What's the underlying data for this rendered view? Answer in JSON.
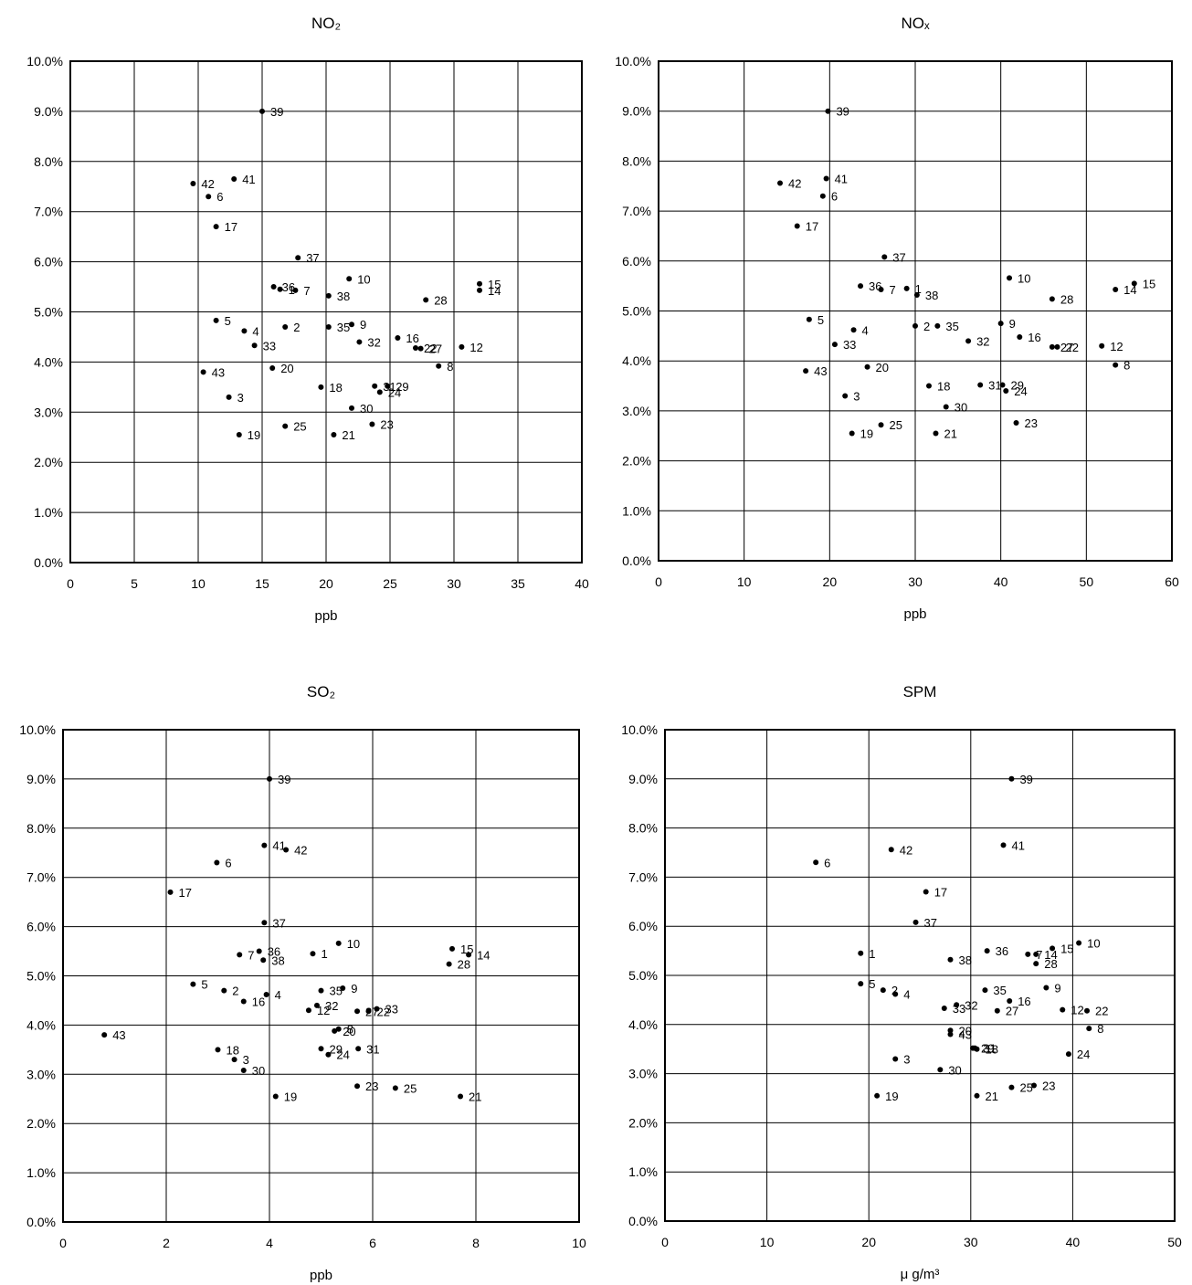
{
  "chart_data": [
    {
      "type": "scatter",
      "title": "NO₂",
      "xlabel": "ppb",
      "ylabel": "",
      "xlim": [
        0,
        40
      ],
      "ylim": [
        0,
        0.1
      ],
      "xticks": [
        "0",
        "5",
        "10",
        "15",
        "20",
        "25",
        "30",
        "35",
        "40"
      ],
      "yticks": [
        "0.0%",
        "1.0%",
        "2.0%",
        "3.0%",
        "4.0%",
        "5.0%",
        "6.0%",
        "7.0%",
        "8.0%",
        "9.0%",
        "10.0%"
      ],
      "grid": true,
      "points": [
        {
          "label": "1",
          "x": 16.4,
          "y": 0.0545
        },
        {
          "label": "2",
          "x": 16.8,
          "y": 0.047
        },
        {
          "label": "3",
          "x": 12.4,
          "y": 0.033
        },
        {
          "label": "4",
          "x": 13.6,
          "y": 0.0462
        },
        {
          "label": "5",
          "x": 11.4,
          "y": 0.0483
        },
        {
          "label": "6",
          "x": 10.8,
          "y": 0.073
        },
        {
          "label": "7",
          "x": 17.6,
          "y": 0.0543
        },
        {
          "label": "8",
          "x": 28.8,
          "y": 0.0392
        },
        {
          "label": "9",
          "x": 22.0,
          "y": 0.0475
        },
        {
          "label": "10",
          "x": 21.8,
          "y": 0.0566
        },
        {
          "label": "12",
          "x": 30.6,
          "y": 0.043
        },
        {
          "label": "14",
          "x": 32.0,
          "y": 0.0543
        },
        {
          "label": "15",
          "x": 32.0,
          "y": 0.0556
        },
        {
          "label": "16",
          "x": 25.6,
          "y": 0.0448
        },
        {
          "label": "17",
          "x": 11.4,
          "y": 0.067
        },
        {
          "label": "18",
          "x": 19.6,
          "y": 0.035
        },
        {
          "label": "19",
          "x": 13.2,
          "y": 0.0255
        },
        {
          "label": "20",
          "x": 15.8,
          "y": 0.0388
        },
        {
          "label": "21",
          "x": 20.6,
          "y": 0.0255
        },
        {
          "label": "22",
          "x": 27.0,
          "y": 0.0428
        },
        {
          "label": "23",
          "x": 23.6,
          "y": 0.0276
        },
        {
          "label": "24",
          "x": 24.2,
          "y": 0.034
        },
        {
          "label": "25",
          "x": 16.8,
          "y": 0.0272
        },
        {
          "label": "27",
          "x": 27.4,
          "y": 0.0427
        },
        {
          "label": "28",
          "x": 27.8,
          "y": 0.0524
        },
        {
          "label": "29",
          "x": 24.8,
          "y": 0.0352
        },
        {
          "label": "30",
          "x": 22.0,
          "y": 0.0308
        },
        {
          "label": "31",
          "x": 23.8,
          "y": 0.0352
        },
        {
          "label": "32",
          "x": 22.6,
          "y": 0.044
        },
        {
          "label": "33",
          "x": 14.4,
          "y": 0.0433
        },
        {
          "label": "35",
          "x": 20.2,
          "y": 0.047
        },
        {
          "label": "36",
          "x": 15.9,
          "y": 0.055
        },
        {
          "label": "37",
          "x": 17.8,
          "y": 0.0608
        },
        {
          "label": "38",
          "x": 20.2,
          "y": 0.0532
        },
        {
          "label": "39",
          "x": 15.0,
          "y": 0.09
        },
        {
          "label": "41",
          "x": 12.8,
          "y": 0.0765
        },
        {
          "label": "42",
          "x": 9.6,
          "y": 0.0756
        },
        {
          "label": "43",
          "x": 10.4,
          "y": 0.038
        }
      ]
    },
    {
      "type": "scatter",
      "title": "NOₓ",
      "xlabel": "ppb",
      "ylabel": "",
      "xlim": [
        0,
        60
      ],
      "ylim": [
        0,
        0.1
      ],
      "xticks": [
        "0",
        "10",
        "20",
        "30",
        "40",
        "50",
        "60"
      ],
      "yticks": [
        "0.0%",
        "1.0%",
        "2.0%",
        "3.0%",
        "4.0%",
        "5.0%",
        "6.0%",
        "7.0%",
        "8.0%",
        "9.0%",
        "10.0%"
      ],
      "grid": true,
      "points": [
        {
          "label": "1",
          "x": 29.0,
          "y": 0.0545
        },
        {
          "label": "2",
          "x": 30.0,
          "y": 0.047
        },
        {
          "label": "3",
          "x": 21.8,
          "y": 0.033
        },
        {
          "label": "4",
          "x": 22.8,
          "y": 0.0462
        },
        {
          "label": "5",
          "x": 17.6,
          "y": 0.0483
        },
        {
          "label": "6",
          "x": 19.2,
          "y": 0.073
        },
        {
          "label": "7",
          "x": 26.0,
          "y": 0.0543
        },
        {
          "label": "8",
          "x": 53.4,
          "y": 0.0392
        },
        {
          "label": "9",
          "x": 40.0,
          "y": 0.0475
        },
        {
          "label": "10",
          "x": 41.0,
          "y": 0.0566
        },
        {
          "label": "12",
          "x": 51.8,
          "y": 0.043
        },
        {
          "label": "14",
          "x": 53.4,
          "y": 0.0543
        },
        {
          "label": "15",
          "x": 55.6,
          "y": 0.0555
        },
        {
          "label": "16",
          "x": 42.2,
          "y": 0.0448
        },
        {
          "label": "17",
          "x": 16.2,
          "y": 0.067
        },
        {
          "label": "18",
          "x": 31.6,
          "y": 0.035
        },
        {
          "label": "19",
          "x": 22.6,
          "y": 0.0255
        },
        {
          "label": "20",
          "x": 24.4,
          "y": 0.0388
        },
        {
          "label": "21",
          "x": 32.4,
          "y": 0.0255
        },
        {
          "label": "22",
          "x": 46.6,
          "y": 0.0428
        },
        {
          "label": "23",
          "x": 41.8,
          "y": 0.0276
        },
        {
          "label": "24",
          "x": 40.6,
          "y": 0.034
        },
        {
          "label": "25",
          "x": 26.0,
          "y": 0.0272
        },
        {
          "label": "27",
          "x": 46.0,
          "y": 0.0428
        },
        {
          "label": "28",
          "x": 46.0,
          "y": 0.0524
        },
        {
          "label": "29",
          "x": 40.2,
          "y": 0.0352
        },
        {
          "label": "30",
          "x": 33.6,
          "y": 0.0308
        },
        {
          "label": "31",
          "x": 37.6,
          "y": 0.0352
        },
        {
          "label": "32",
          "x": 36.2,
          "y": 0.044
        },
        {
          "label": "33",
          "x": 20.6,
          "y": 0.0433
        },
        {
          "label": "35",
          "x": 32.6,
          "y": 0.047
        },
        {
          "label": "36",
          "x": 23.6,
          "y": 0.055
        },
        {
          "label": "37",
          "x": 26.4,
          "y": 0.0608
        },
        {
          "label": "38",
          "x": 30.2,
          "y": 0.0532
        },
        {
          "label": "39",
          "x": 19.8,
          "y": 0.09
        },
        {
          "label": "41",
          "x": 19.6,
          "y": 0.0765
        },
        {
          "label": "42",
          "x": 14.2,
          "y": 0.0756
        },
        {
          "label": "43",
          "x": 17.2,
          "y": 0.038
        }
      ]
    },
    {
      "type": "scatter",
      "title": "SO₂",
      "xlabel": "ppb",
      "ylabel": "",
      "xlim": [
        0,
        10
      ],
      "ylim": [
        0,
        0.1
      ],
      "xticks": [
        "0",
        "2",
        "4",
        "6",
        "8",
        "10"
      ],
      "yticks": [
        "0.0%",
        "1.0%",
        "2.0%",
        "3.0%",
        "4.0%",
        "5.0%",
        "6.0%",
        "7.0%",
        "8.0%",
        "9.0%",
        "10.0%"
      ],
      "grid": true,
      "points": [
        {
          "label": "1",
          "x": 4.84,
          "y": 0.0545
        },
        {
          "label": "2",
          "x": 3.12,
          "y": 0.047
        },
        {
          "label": "3",
          "x": 3.32,
          "y": 0.033
        },
        {
          "label": "4",
          "x": 3.94,
          "y": 0.0462
        },
        {
          "label": "5",
          "x": 2.52,
          "y": 0.0483
        },
        {
          "label": "6",
          "x": 2.98,
          "y": 0.073
        },
        {
          "label": "7",
          "x": 3.42,
          "y": 0.0543
        },
        {
          "label": "8",
          "x": 5.34,
          "y": 0.0392
        },
        {
          "label": "9",
          "x": 5.42,
          "y": 0.0475
        },
        {
          "label": "10",
          "x": 5.34,
          "y": 0.0566
        },
        {
          "label": "12",
          "x": 4.76,
          "y": 0.043
        },
        {
          "label": "14",
          "x": 7.86,
          "y": 0.0543
        },
        {
          "label": "15",
          "x": 7.54,
          "y": 0.0555
        },
        {
          "label": "16",
          "x": 3.5,
          "y": 0.0448
        },
        {
          "label": "17",
          "x": 2.08,
          "y": 0.067
        },
        {
          "label": "18",
          "x": 3.0,
          "y": 0.035
        },
        {
          "label": "19",
          "x": 4.12,
          "y": 0.0255
        },
        {
          "label": "20",
          "x": 5.26,
          "y": 0.0388
        },
        {
          "label": "21",
          "x": 7.7,
          "y": 0.0255
        },
        {
          "label": "22",
          "x": 5.92,
          "y": 0.0428
        },
        {
          "label": "23",
          "x": 5.7,
          "y": 0.0276
        },
        {
          "label": "24",
          "x": 5.14,
          "y": 0.034
        },
        {
          "label": "25",
          "x": 6.44,
          "y": 0.0272
        },
        {
          "label": "27",
          "x": 5.7,
          "y": 0.0428
        },
        {
          "label": "28",
          "x": 7.48,
          "y": 0.0524
        },
        {
          "label": "29",
          "x": 5.0,
          "y": 0.0352
        },
        {
          "label": "30",
          "x": 3.5,
          "y": 0.0308
        },
        {
          "label": "31",
          "x": 5.72,
          "y": 0.0352
        },
        {
          "label": "32",
          "x": 4.92,
          "y": 0.044
        },
        {
          "label": "33",
          "x": 6.08,
          "y": 0.0433
        },
        {
          "label": "35",
          "x": 5.0,
          "y": 0.047
        },
        {
          "label": "36",
          "x": 3.8,
          "y": 0.055
        },
        {
          "label": "37",
          "x": 3.9,
          "y": 0.0608
        },
        {
          "label": "38",
          "x": 3.88,
          "y": 0.0532
        },
        {
          "label": "39",
          "x": 4.0,
          "y": 0.09
        },
        {
          "label": "41",
          "x": 3.9,
          "y": 0.0765
        },
        {
          "label": "42",
          "x": 4.32,
          "y": 0.0756
        },
        {
          "label": "43",
          "x": 0.8,
          "y": 0.038
        }
      ]
    },
    {
      "type": "scatter",
      "title": "SPM",
      "xlabel": "μ g/m³",
      "ylabel": "",
      "xlim": [
        0,
        50
      ],
      "ylim": [
        0,
        0.1
      ],
      "xticks": [
        "0",
        "10",
        "20",
        "30",
        "40",
        "50"
      ],
      "yticks": [
        "0.0%",
        "1.0%",
        "2.0%",
        "3.0%",
        "4.0%",
        "5.0%",
        "6.0%",
        "7.0%",
        "8.0%",
        "9.0%",
        "10.0%"
      ],
      "grid": true,
      "points": [
        {
          "label": "1",
          "x": 19.2,
          "y": 0.0545
        },
        {
          "label": "2",
          "x": 21.4,
          "y": 0.047
        },
        {
          "label": "3",
          "x": 22.6,
          "y": 0.033
        },
        {
          "label": "4",
          "x": 22.6,
          "y": 0.0462
        },
        {
          "label": "5",
          "x": 19.2,
          "y": 0.0483
        },
        {
          "label": "6",
          "x": 14.8,
          "y": 0.073
        },
        {
          "label": "7",
          "x": 35.6,
          "y": 0.0543
        },
        {
          "label": "8",
          "x": 41.6,
          "y": 0.0392
        },
        {
          "label": "9",
          "x": 37.4,
          "y": 0.0475
        },
        {
          "label": "10",
          "x": 40.6,
          "y": 0.0566
        },
        {
          "label": "12",
          "x": 39.0,
          "y": 0.043
        },
        {
          "label": "14",
          "x": 36.4,
          "y": 0.0543
        },
        {
          "label": "15",
          "x": 38.0,
          "y": 0.0555
        },
        {
          "label": "16",
          "x": 33.8,
          "y": 0.0448
        },
        {
          "label": "17",
          "x": 25.6,
          "y": 0.067
        },
        {
          "label": "18",
          "x": 30.6,
          "y": 0.035
        },
        {
          "label": "19",
          "x": 20.8,
          "y": 0.0255
        },
        {
          "label": "20",
          "x": 28.0,
          "y": 0.0388
        },
        {
          "label": "21",
          "x": 30.6,
          "y": 0.0255
        },
        {
          "label": "22",
          "x": 41.4,
          "y": 0.0428
        },
        {
          "label": "23",
          "x": 36.2,
          "y": 0.0276
        },
        {
          "label": "24",
          "x": 39.6,
          "y": 0.034
        },
        {
          "label": "25",
          "x": 34.0,
          "y": 0.0272
        },
        {
          "label": "27",
          "x": 32.6,
          "y": 0.0428
        },
        {
          "label": "28",
          "x": 36.4,
          "y": 0.0524
        },
        {
          "label": "29",
          "x": 30.2,
          "y": 0.0352
        },
        {
          "label": "30",
          "x": 27.0,
          "y": 0.0308
        },
        {
          "label": "31",
          "x": 30.4,
          "y": 0.0352
        },
        {
          "label": "32",
          "x": 28.6,
          "y": 0.044
        },
        {
          "label": "33",
          "x": 27.4,
          "y": 0.0433
        },
        {
          "label": "35",
          "x": 31.4,
          "y": 0.047
        },
        {
          "label": "36",
          "x": 31.6,
          "y": 0.055
        },
        {
          "label": "37",
          "x": 24.6,
          "y": 0.0608
        },
        {
          "label": "38",
          "x": 28.0,
          "y": 0.0532
        },
        {
          "label": "39",
          "x": 34.0,
          "y": 0.09
        },
        {
          "label": "41",
          "x": 33.2,
          "y": 0.0765
        },
        {
          "label": "42",
          "x": 22.2,
          "y": 0.0756
        },
        {
          "label": "43",
          "x": 28.0,
          "y": 0.038
        }
      ]
    }
  ]
}
